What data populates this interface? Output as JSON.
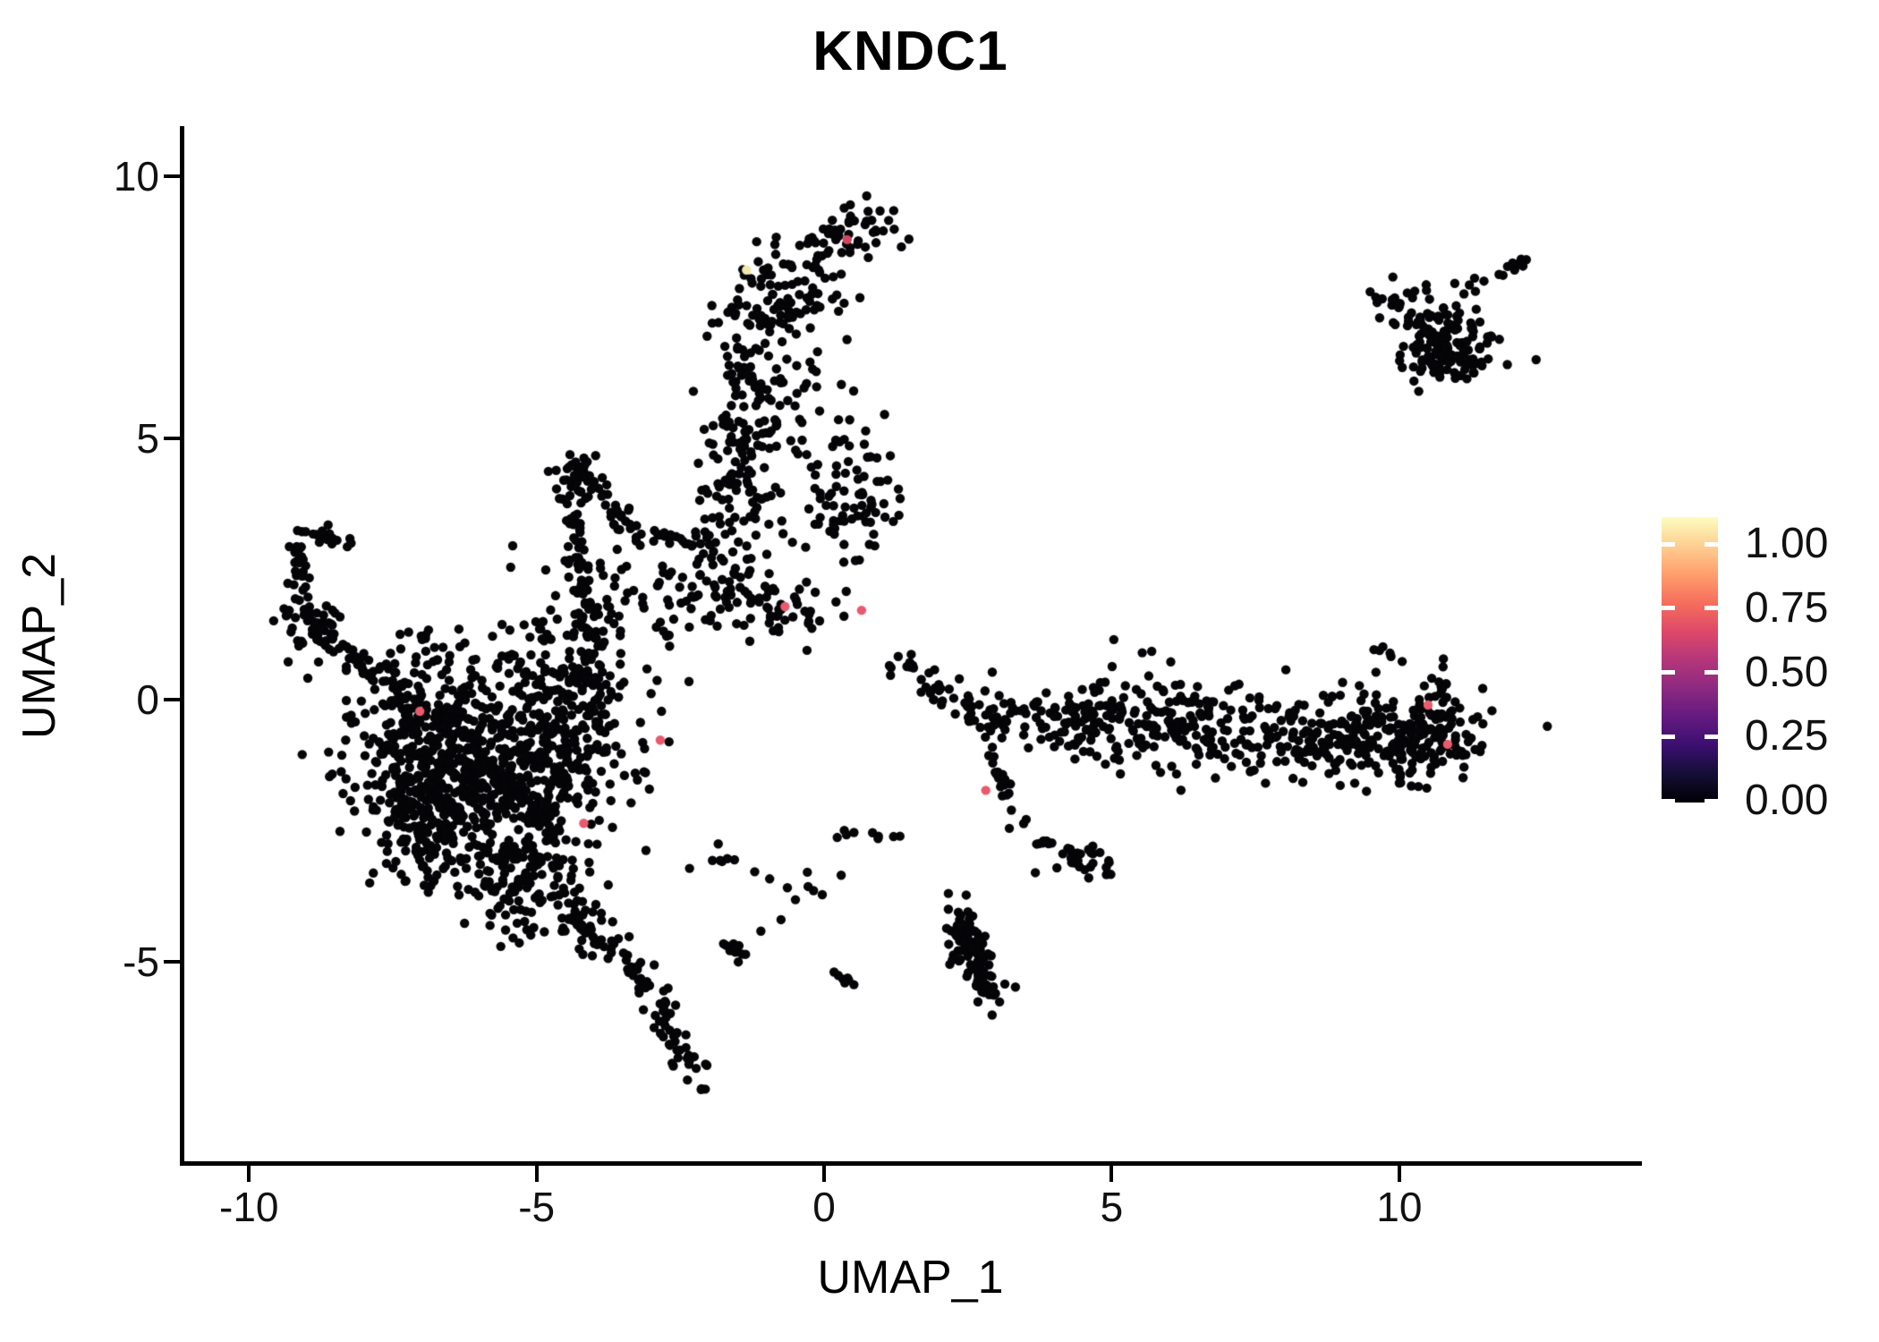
{
  "chart_data": {
    "type": "scatter",
    "title": "KNDC1",
    "xlabel": "UMAP_1",
    "ylabel": "UMAP_2",
    "xlim": [
      -11.14,
      14.14
    ],
    "ylim": [
      -8.85,
      10.89
    ],
    "x_ticks": [
      -10,
      -5,
      0,
      5,
      10
    ],
    "x_tick_labels": [
      "-10",
      "-5",
      "0",
      "5",
      "10"
    ],
    "y_ticks": [
      10,
      5,
      0,
      -5
    ],
    "y_tick_labels": [
      "10",
      "5",
      "0",
      "-5"
    ],
    "grid": false,
    "legend_position": "right",
    "point_color": "#050508",
    "point_radius": 5.2,
    "seed": 42,
    "colorbar": {
      "tick_labels": [
        "1.00",
        "0.75",
        "0.50",
        "0.25",
        "0.00"
      ],
      "tick_values": [
        1.0,
        0.75,
        0.5,
        0.25,
        0.0
      ],
      "value_range": [
        0,
        1.11
      ],
      "colormap_name": "magma",
      "colormap": [
        "#000004",
        "#140e36",
        "#3b0f70",
        "#641a80",
        "#8c2981",
        "#b5367a",
        "#de4968",
        "#f66e5c",
        "#fe9f6d",
        "#fecf92",
        "#fcfdbf"
      ]
    },
    "clusters": [
      {
        "t": "g",
        "name": "top-knob",
        "x": 0.55,
        "y": 9.05,
        "sx": 0.38,
        "sy": 0.28,
        "n": 40
      },
      {
        "t": "g",
        "name": "north-arm-upper",
        "x": -0.7,
        "y": 7.75,
        "sx": 0.55,
        "sy": 0.5,
        "n": 85
      },
      {
        "t": "g",
        "name": "north-arm-mid",
        "x": -1.15,
        "y": 5.95,
        "sx": 0.52,
        "sy": 0.8,
        "n": 120
      },
      {
        "t": "g",
        "name": "north-arm-lower",
        "x": -1.6,
        "y": 3.9,
        "sx": 0.38,
        "sy": 0.65,
        "n": 70
      },
      {
        "t": "g",
        "name": "north-arm-base",
        "x": -1.8,
        "y": 2.1,
        "sx": 0.5,
        "sy": 0.5,
        "n": 60
      },
      {
        "t": "g",
        "name": "east-of-arm",
        "x": 0.35,
        "y": 3.75,
        "sx": 0.5,
        "sy": 0.5,
        "n": 70
      },
      {
        "t": "g",
        "name": "east-of-arm-sparse",
        "x": 0.4,
        "y": 4.9,
        "sx": 0.55,
        "sy": 0.45,
        "n": 14
      },
      {
        "t": "g",
        "name": "central-band-west",
        "x": -3.3,
        "y": 1.95,
        "sx": 0.85,
        "sy": 0.5,
        "n": 60
      },
      {
        "t": "g",
        "name": "central-clump",
        "x": -0.6,
        "y": 1.75,
        "sx": 0.45,
        "sy": 0.35,
        "n": 35
      },
      {
        "t": "g",
        "name": "tent-peak",
        "x": -4.35,
        "y": 4.3,
        "sx": 0.22,
        "sy": 0.25,
        "n": 30
      },
      {
        "t": "g",
        "name": "west-hook-blob",
        "x": -8.95,
        "y": 1.45,
        "sx": 0.28,
        "sy": 0.33,
        "n": 45
      },
      {
        "t": "g",
        "name": "northeast-main",
        "x": 10.75,
        "y": 6.95,
        "sx": 0.48,
        "sy": 0.52,
        "n": 120
      },
      {
        "t": "g",
        "name": "northeast-dense",
        "x": 10.95,
        "y": 6.5,
        "sx": 0.3,
        "sy": 0.25,
        "n": 45
      },
      {
        "t": "g",
        "name": "main-blob-1",
        "x": -6.7,
        "y": -0.85,
        "sx": 0.8,
        "sy": 0.7,
        "n": 320
      },
      {
        "t": "g",
        "name": "main-blob-2",
        "x": -5.6,
        "y": -1.7,
        "sx": 0.85,
        "sy": 0.8,
        "n": 320
      },
      {
        "t": "g",
        "name": "main-blob-3",
        "x": -6.85,
        "y": -2.3,
        "sx": 0.55,
        "sy": 0.6,
        "n": 170
      },
      {
        "t": "g",
        "name": "main-blob-east",
        "x": -4.4,
        "y": -0.5,
        "sx": 0.6,
        "sy": 0.65,
        "n": 170
      },
      {
        "t": "g",
        "name": "main-blob-north",
        "x": -4.9,
        "y": 0.6,
        "sx": 0.8,
        "sy": 0.5,
        "n": 100
      },
      {
        "t": "g",
        "name": "main-blob-south",
        "x": -5.1,
        "y": -3.5,
        "sx": 0.5,
        "sy": 0.55,
        "n": 130
      },
      {
        "t": "g",
        "name": "blob-northwest-knot",
        "x": -7.05,
        "y": 0.85,
        "sx": 0.28,
        "sy": 0.3,
        "n": 20
      },
      {
        "t": "g",
        "name": "east-band-right",
        "x": 9.0,
        "y": -0.75,
        "sx": 1.05,
        "sy": 0.42,
        "n": 230
      },
      {
        "t": "g",
        "name": "east-band-mid",
        "x": 6.0,
        "y": -0.45,
        "sx": 1.1,
        "sy": 0.4,
        "n": 170
      },
      {
        "t": "g",
        "name": "east-band-end",
        "x": 10.55,
        "y": -0.7,
        "sx": 0.42,
        "sy": 0.4,
        "n": 90
      },
      {
        "t": "g",
        "name": "east-band-above",
        "x": 5.5,
        "y": 0.3,
        "sx": 0.9,
        "sy": 0.35,
        "n": 20
      },
      {
        "t": "g",
        "name": "south-chain-clump",
        "x": 4.55,
        "y": -3.2,
        "sx": 0.28,
        "sy": 0.25,
        "n": 22
      },
      {
        "t": "l",
        "name": "hook-top",
        "x1": -9.2,
        "y1": 3.15,
        "x2": -8.35,
        "y2": 3.05,
        "jx": 0.1,
        "jy": 0.1,
        "n": 20
      },
      {
        "t": "l",
        "name": "hook-left",
        "x1": -9.25,
        "y1": 2.95,
        "x2": -9.05,
        "y2": 2.0,
        "jx": 0.1,
        "jy": 0.12,
        "n": 22
      },
      {
        "t": "l",
        "name": "hook-arm",
        "x1": -8.7,
        "y1": 1.3,
        "x2": -7.2,
        "y2": -0.15,
        "jx": 0.18,
        "jy": 0.15,
        "n": 60
      },
      {
        "t": "l",
        "name": "tent-left-leg",
        "x1": -4.4,
        "y1": 4.2,
        "x2": -4.0,
        "y2": 0.3,
        "jx": 0.13,
        "jy": 0.25,
        "n": 75
      },
      {
        "t": "l",
        "name": "tent-right-leg",
        "x1": -4.3,
        "y1": 4.25,
        "x2": -3.05,
        "y2": 2.95,
        "jx": 0.12,
        "jy": 0.15,
        "n": 40
      },
      {
        "t": "l",
        "name": "tent-dashes",
        "x1": -2.95,
        "y1": 3.2,
        "x2": -2.25,
        "y2": 2.95,
        "jx": 0.1,
        "jy": 0.08,
        "n": 14
      },
      {
        "t": "l",
        "name": "knob-link",
        "x1": 0.3,
        "y1": 8.9,
        "x2": -0.4,
        "y2": 8.3,
        "jx": 0.2,
        "jy": 0.15,
        "n": 12
      },
      {
        "t": "l",
        "name": "tail-upper",
        "x1": -4.3,
        "y1": -4.0,
        "x2": -3.0,
        "y2": -5.6,
        "jx": 0.18,
        "jy": 0.15,
        "n": 60
      },
      {
        "t": "l",
        "name": "tail-lower",
        "x1": -2.95,
        "y1": -5.7,
        "x2": -2.15,
        "y2": -7.45,
        "jx": 0.13,
        "jy": 0.12,
        "n": 45
      },
      {
        "t": "l",
        "name": "south-chain",
        "x1": 2.9,
        "y1": -1.1,
        "x2": 3.4,
        "y2": -2.55,
        "jx": 0.08,
        "jy": 0.1,
        "n": 20
      },
      {
        "t": "l",
        "name": "south-chain-dash",
        "x1": 3.6,
        "y1": -2.68,
        "x2": 3.95,
        "y2": -2.75,
        "jx": 0.06,
        "jy": 0.05,
        "n": 7
      },
      {
        "t": "l",
        "name": "south-chain-link",
        "x1": 4.1,
        "y1": -2.85,
        "x2": 4.45,
        "y2": -3.1,
        "jx": 0.07,
        "jy": 0.06,
        "n": 8
      },
      {
        "t": "l",
        "name": "south-strip",
        "x1": 2.35,
        "y1": -4.25,
        "x2": 2.95,
        "y2": -5.7,
        "jx": 0.15,
        "jy": 0.18,
        "n": 110
      },
      {
        "t": "l",
        "name": "south-mini-chain",
        "x1": 0.12,
        "y1": -5.2,
        "x2": 0.45,
        "y2": -5.4,
        "jx": 0.06,
        "jy": 0.05,
        "n": 7
      },
      {
        "t": "l",
        "name": "tail-side-strand",
        "x1": -1.85,
        "y1": -4.55,
        "x2": -1.35,
        "y2": -5.0,
        "jx": 0.08,
        "jy": 0.08,
        "n": 10
      },
      {
        "t": "l",
        "name": "band-west-chain",
        "x1": 1.28,
        "y1": 0.78,
        "x2": 2.63,
        "y2": -0.3,
        "jx": 0.15,
        "jy": 0.12,
        "n": 35
      },
      {
        "t": "l",
        "name": "band-west",
        "x1": 2.7,
        "y1": -0.25,
        "x2": 4.9,
        "y2": -0.55,
        "jx": 0.3,
        "jy": 0.28,
        "n": 90
      },
      {
        "t": "l",
        "name": "band-tip-strand",
        "x1": 10.72,
        "y1": 0.05,
        "x2": 10.8,
        "y2": 1.0,
        "jx": 0.06,
        "jy": 0.1,
        "n": 10
      },
      {
        "t": "l",
        "name": "band-tip-dots",
        "x1": 9.6,
        "y1": 1.05,
        "x2": 10.1,
        "y2": 0.55,
        "jx": 0.08,
        "jy": 0.08,
        "n": 6
      },
      {
        "t": "l",
        "name": "northeast-streak",
        "x1": 9.45,
        "y1": 7.7,
        "x2": 10.15,
        "y2": 7.55,
        "jx": 0.1,
        "jy": 0.08,
        "n": 13
      },
      {
        "t": "l",
        "name": "northeast-arc",
        "x1": 11.7,
        "y1": 8.0,
        "x2": 12.15,
        "y2": 8.4,
        "jx": 0.08,
        "jy": 0.08,
        "n": 10
      },
      {
        "t": "l",
        "name": "blob-to-center-sparse",
        "x1": -2.0,
        "y1": -2.9,
        "x2": 0.1,
        "y2": -3.7,
        "jx": 0.25,
        "jy": 0.15,
        "n": 16
      },
      {
        "t": "l",
        "name": "center-dashes",
        "x1": 0.45,
        "y1": -2.53,
        "x2": 1.54,
        "y2": -2.62,
        "jx": 0.2,
        "jy": 0.06,
        "n": 9
      }
    ],
    "singles": [
      [
        1.05,
        5.45
      ],
      [
        0.25,
        5.35
      ],
      [
        2.16,
        -3.7
      ],
      [
        2.47,
        -3.73
      ],
      [
        -2.35,
        0.35
      ],
      [
        -6.35,
        1.35
      ],
      [
        2.35,
        0.4
      ],
      [
        1.85,
        0.15
      ],
      [
        -0.75,
        -4.2
      ],
      [
        -1.1,
        -4.42
      ],
      [
        2.16,
        -4.0
      ],
      [
        2.5,
        -4.05
      ]
    ],
    "highlighted_points": [
      {
        "x": 0.4,
        "y": 8.79,
        "value": 0.6,
        "color": "#d6455f"
      },
      {
        "x": -1.35,
        "y": 8.21,
        "value": 1.0,
        "color": "#f0e9a8"
      },
      {
        "x": -7.03,
        "y": -0.22,
        "value": 0.7,
        "color": "#ea5a6e"
      },
      {
        "x": -2.85,
        "y": -0.77,
        "value": 0.7,
        "color": "#ea5a6e"
      },
      {
        "x": -0.68,
        "y": 1.78,
        "value": 0.7,
        "color": "#ea5a6e"
      },
      {
        "x": 0.65,
        "y": 1.71,
        "value": 0.7,
        "color": "#ea5a6e"
      },
      {
        "x": -4.18,
        "y": -2.36,
        "value": 0.7,
        "color": "#ea5a6e"
      },
      {
        "x": 2.81,
        "y": -1.73,
        "value": 0.7,
        "color": "#ea5a6e"
      },
      {
        "x": 10.5,
        "y": -0.1,
        "value": 0.7,
        "color": "#ea5a6e"
      },
      {
        "x": 10.84,
        "y": -0.85,
        "value": 0.7,
        "color": "#ea5a6e"
      }
    ]
  }
}
